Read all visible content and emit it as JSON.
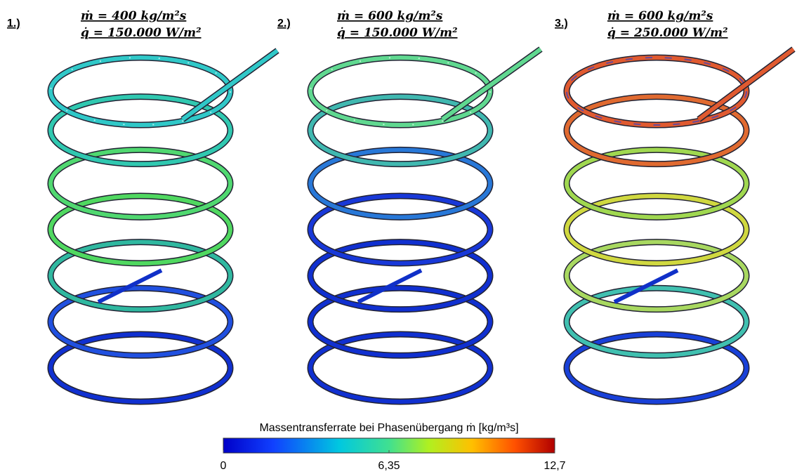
{
  "panels": [
    {
      "label": "1.)",
      "mass_flux": "ṁ = 400  kg/m²s",
      "heat_flux": "q̇ = 150.000 W/m²"
    },
    {
      "label": "2.)",
      "mass_flux": "ṁ = 600  kg/m²s",
      "heat_flux": "q̇ = 150.000 W/m²"
    },
    {
      "label": "3.)",
      "mass_flux": "ṁ = 600  kg/m²s",
      "heat_flux": "q̇ = 250.000 W/m²"
    }
  ],
  "colorbar": {
    "title": "Massentransferrate bei Phasenübergang ṁ [kg/m³s]",
    "lim": [
      0,
      12.7
    ],
    "ticks": [
      0,
      {
        "value": 6.35,
        "label": "6,35"
      },
      {
        "value": 12.7,
        "label": "12,7"
      }
    ]
  }
}
